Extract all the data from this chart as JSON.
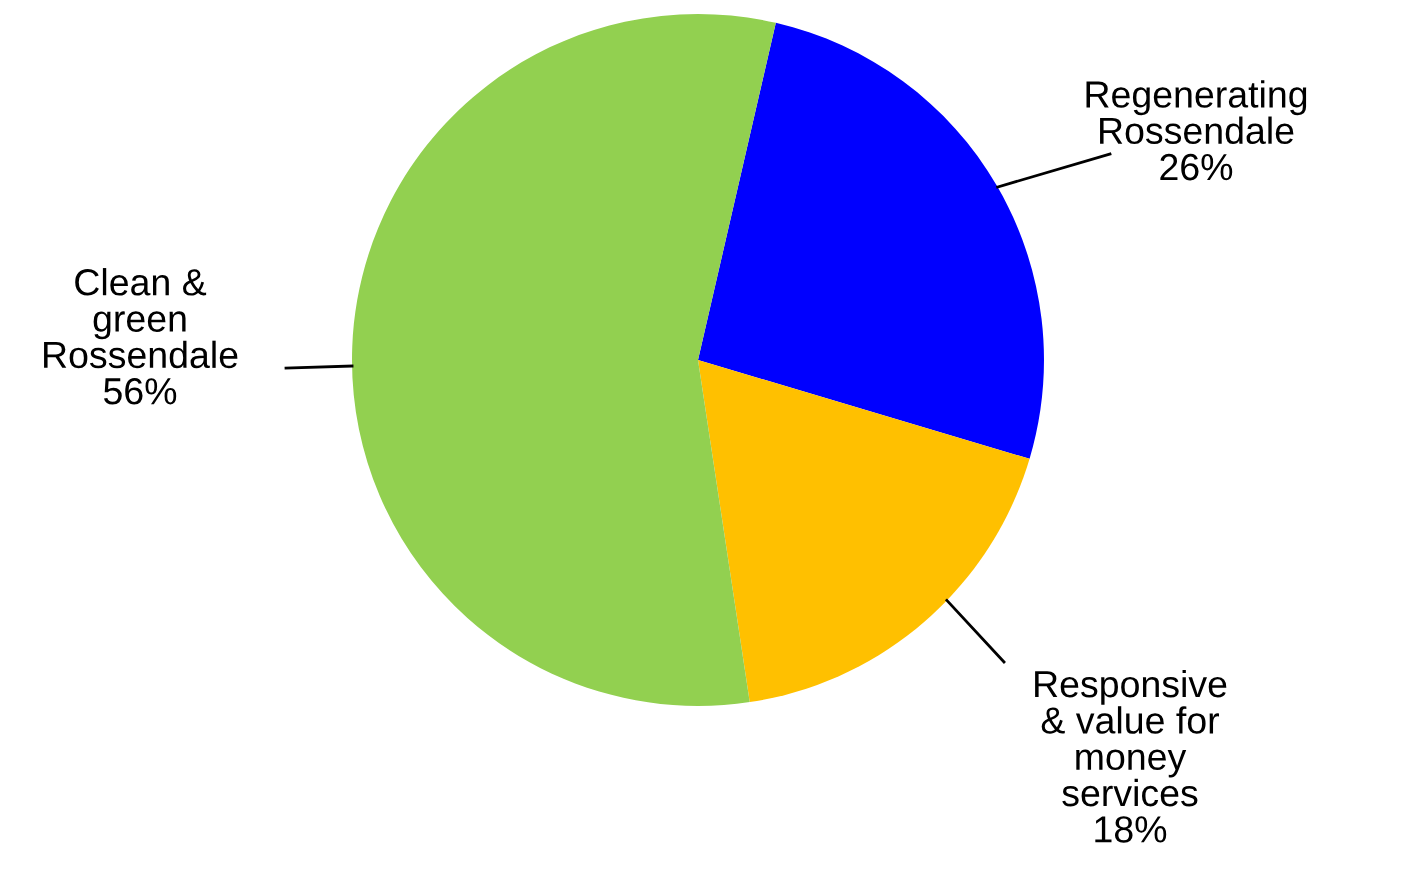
{
  "chart_data": {
    "type": "pie",
    "categories": [
      "Regenerating\nRossendale",
      "Responsive\n& value for\nmoney\nservices",
      "Clean &\ngreen\nRossendale"
    ],
    "values": [
      26,
      18,
      56
    ],
    "value_labels": [
      "26%",
      "18%",
      "56%"
    ],
    "colors": [
      "#0000ff",
      "#ffc000",
      "#92d050"
    ],
    "legend": false
  }
}
